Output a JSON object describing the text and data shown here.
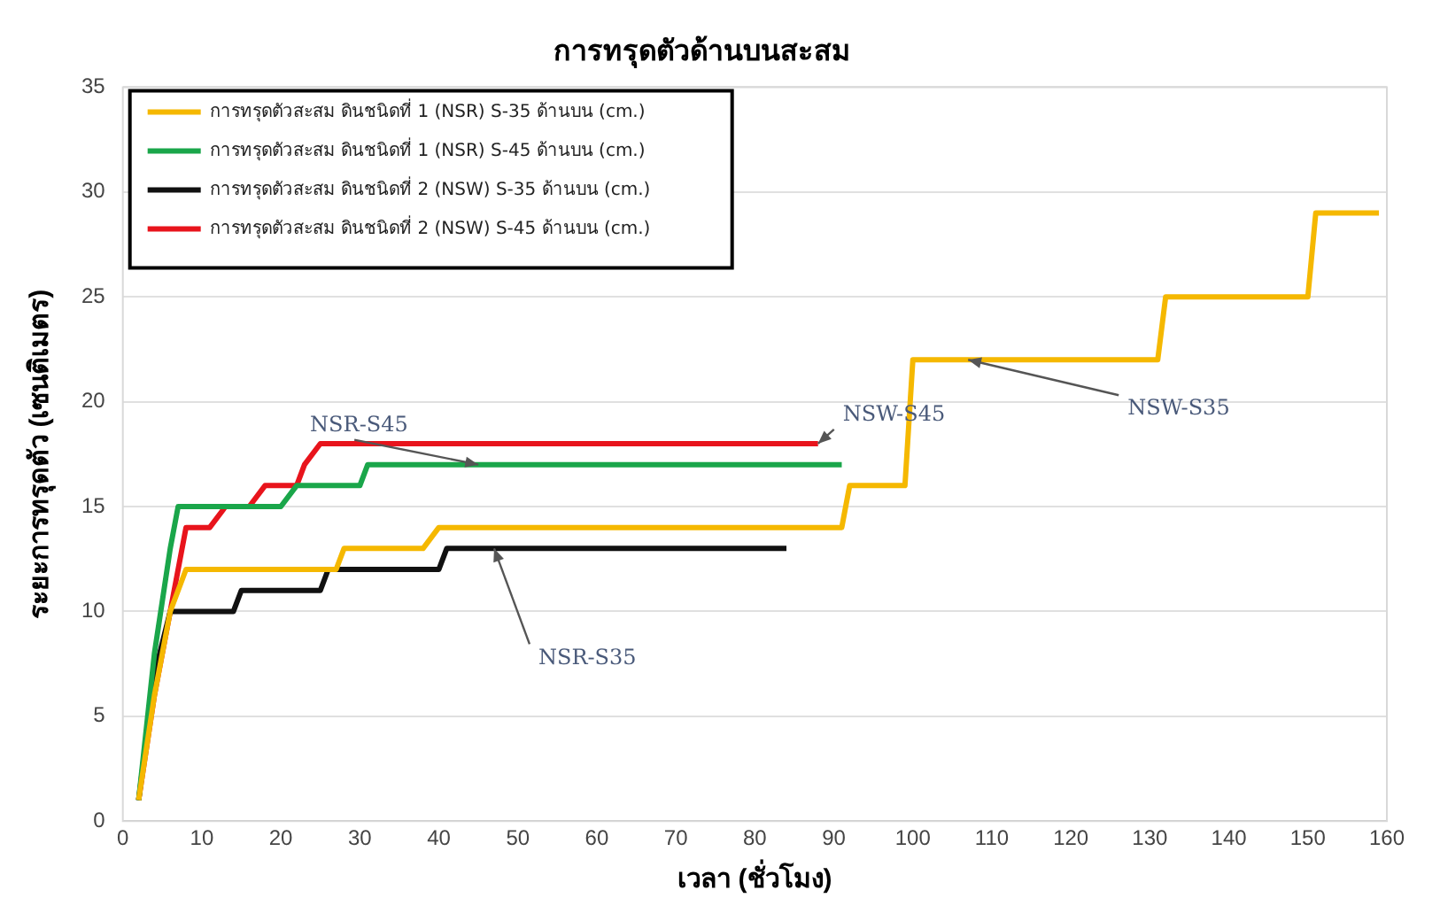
{
  "chart_data": {
    "type": "line",
    "title": "การทรุดตัวด้านบนสะสม",
    "xlabel": "เวลา (ชั่วโมง)",
    "ylabel": "ระยะการทรุดตัว (เซนติเมตร)",
    "xlim": [
      0,
      160
    ],
    "xticks": [
      0,
      10,
      20,
      30,
      40,
      50,
      60,
      70,
      80,
      90,
      100,
      110,
      120,
      130,
      140,
      150,
      160
    ],
    "ylim": [
      0,
      35
    ],
    "yticks": [
      0,
      5,
      10,
      15,
      20,
      25,
      30,
      35
    ],
    "grid": "y",
    "legend": "top left",
    "marker": "none",
    "line_style": "solid",
    "series": [
      {
        "name": "การทรุดตัวสะสม ดินชนิดที่ 1 (NSR) S-35 ด้านบน (cm.)",
        "color": "#f5b800",
        "x": [
          2,
          4,
          6,
          8,
          27,
          28,
          38,
          40,
          91,
          92,
          99,
          100,
          131,
          132,
          150,
          151,
          159
        ],
        "values": [
          1,
          6,
          10,
          12,
          12,
          13,
          13,
          14,
          14,
          16,
          16,
          22,
          22,
          25,
          25,
          29,
          29
        ]
      },
      {
        "name": "การทรุดตัวสะสม ดินชนิดที่ 1 (NSR) S-45 ด้านบน (cm.)",
        "color": "#1aa64a",
        "x": [
          2,
          4,
          6,
          7,
          20,
          22,
          30,
          31,
          91
        ],
        "values": [
          1,
          8,
          13,
          15,
          15,
          16,
          16,
          17,
          17
        ]
      },
      {
        "name": "การทรุดตัวสะสม ดินชนิดที่ 2 (NSW) S-35 ด้านบน (cm.)",
        "color": "#111111",
        "x": [
          2,
          4,
          6,
          14,
          15,
          25,
          26,
          40,
          41,
          84
        ],
        "values": [
          1,
          7,
          10,
          10,
          11,
          11,
          12,
          12,
          13,
          13
        ]
      },
      {
        "name": "การทรุดตัวสะสม ดินชนิดที่ 2 (NSW) S-45 ด้านบน (cm.)",
        "color": "#e8141c",
        "x": [
          2,
          4,
          6,
          8,
          11,
          13,
          16,
          18,
          22,
          23,
          25,
          88
        ],
        "values": [
          1,
          6,
          10,
          14,
          14,
          15,
          15,
          16,
          16,
          17,
          18,
          18
        ]
      }
    ],
    "annotations": [
      {
        "text": "NSR-S45",
        "x": 45,
        "y": 17
      },
      {
        "text": "NSW-S45",
        "x": 88,
        "y": 18
      },
      {
        "text": "NSW-S35",
        "x": 107,
        "y": 22
      },
      {
        "text": "NSR-S35",
        "x": 47,
        "y": 13
      }
    ]
  }
}
